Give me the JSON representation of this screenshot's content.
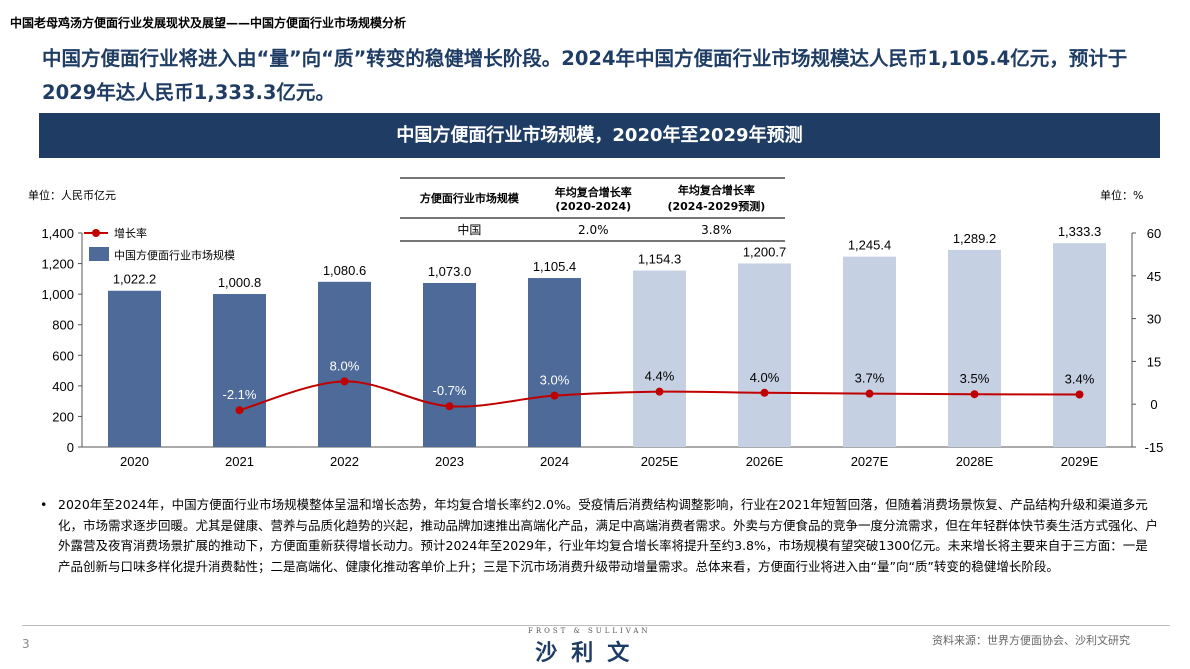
{
  "breadcrumb": "中国老母鸡汤方便面行业发展现状及展望——中国方便面行业市场规模分析",
  "headline": "中国方便面行业将进入由“量”向“质”转变的稳健增长阶段。2024年中国方便面行业市场规模达人民币1,105.4亿元，预计于2029年达人民币1,333.3亿元。",
  "chart_title": "中国方便面行业市场规模，2020年至2029年预测",
  "unit_left": "单位：人民币亿元",
  "unit_right": "单位：%",
  "cagr_table": {
    "headers": [
      "方便面行业市场规模",
      "年均复合增长率\n(2020-2024)",
      "年均复合增长率\n(2024-2029预测)"
    ],
    "rows": [
      [
        "中国",
        "2.0%",
        "3.8%"
      ]
    ]
  },
  "colors": {
    "actual_bar": "#4d6a98",
    "forecast_bar": "#c5d0e3",
    "line": "#c00000",
    "title_bar": "#1f3d64"
  },
  "chart_data": {
    "type": "bar+line",
    "categories": [
      "2020",
      "2021",
      "2022",
      "2023",
      "2024",
      "2025E",
      "2026E",
      "2027E",
      "2028E",
      "2029E"
    ],
    "series": [
      {
        "name": "中国方便面行业市场规模",
        "type": "bar",
        "axis": "left",
        "values": [
          1022.2,
          1000.8,
          1080.6,
          1073.0,
          1105.4,
          1154.3,
          1200.7,
          1245.4,
          1289.2,
          1333.3
        ],
        "labels": [
          "1,022.2",
          "1,000.8",
          "1,080.6",
          "1,073.0",
          "1,105.4",
          "1,154.3",
          "1,200.7",
          "1,245.4",
          "1,289.2",
          "1,333.3"
        ]
      },
      {
        "name": "增长率",
        "type": "line",
        "axis": "right",
        "values": [
          null,
          -2.1,
          8.0,
          -0.7,
          3.0,
          4.4,
          4.0,
          3.7,
          3.5,
          3.4
        ],
        "labels": [
          null,
          "-2.1%",
          "8.0%",
          "-0.7%",
          "3.0%",
          "4.4%",
          "4.0%",
          "3.7%",
          "3.5%",
          "3.4%"
        ]
      }
    ],
    "forecast_from": "2025E",
    "left_axis": {
      "range": [
        0,
        1400
      ],
      "ticks": [
        0,
        200,
        400,
        600,
        800,
        1000,
        1200,
        1400
      ],
      "tick_labels": [
        "0",
        "200",
        "400",
        "600",
        "800",
        "1,000",
        "1,200",
        "1,400"
      ]
    },
    "right_axis": {
      "range": [
        -15,
        60
      ],
      "ticks": [
        -15,
        0,
        15,
        30,
        45,
        60
      ],
      "tick_labels": [
        "-15",
        "0",
        "15",
        "30",
        "45",
        "60"
      ]
    },
    "legend": [
      "增长率",
      "中国方便面行业市场规模"
    ],
    "legend_placement": "top-left",
    "grid": false
  },
  "bullet": "2020年至2024年，中国方便面行业市场规模整体呈温和增长态势，年均复合增长率约2.0%。受疫情后消费结构调整影响，行业在2021年短暂回落，但随着消费场景恢复、产品结构升级和渠道多元化，市场需求逐步回暖。尤其是健康、营养与品质化趋势的兴起，推动品牌加速推出高端化产品，满足中高端消费者需求。外卖与方便食品的竞争一度分流需求，但在年轻群体快节奏生活方式强化、户外露营及夜宵消费场景扩展的推动下，方便面重新获得增长动力。预计2024年至2029年，行业年均复合增长率将提升至约3.8%，市场规模有望突破1300亿元。未来增长将主要来自于三方面：一是产品创新与口味多样化提升消费黏性；二是高端化、健康化推动客单价上升；三是下沉市场消费升级带动增量需求。总体来看，方便面行业将进入由“量”向“质”转变的稳健增长阶段。",
  "page_number": "3",
  "logo": {
    "en": "FROST & SULLIVAN",
    "cn": "沙利文"
  },
  "source": "资料来源：世界方便面协会、沙利文研究"
}
